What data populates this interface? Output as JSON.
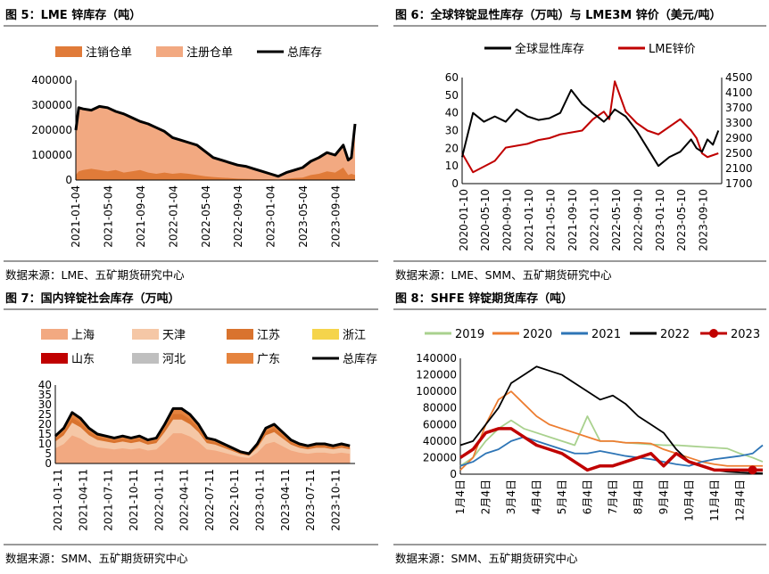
{
  "charts": [
    {
      "title": "图 5：LME 锌库存（吨）",
      "source": "数据来源：LME、五矿期货研究中心",
      "chart_data": {
        "type": "area",
        "legend_position": "top",
        "series": [
          {
            "name": "注销仓单",
            "kind": "area",
            "color": "#e07b39"
          },
          {
            "name": "注册仓单",
            "kind": "area",
            "color": "#f2a981"
          },
          {
            "name": "总库存",
            "kind": "line",
            "color": "#000000"
          }
        ],
        "x_ticks": [
          "2021-01-04",
          "2021-05-04",
          "2021-09-04",
          "2022-01-04",
          "2022-05-04",
          "2022-09-04",
          "2023-01-04",
          "2023-05-04",
          "2023-09-04"
        ],
        "y_ticks": [
          "0",
          "100000",
          "200000",
          "300000",
          "400000"
        ],
        "ylim": [
          0,
          400000
        ],
        "x_dates": [
          "2021-01-04",
          "2021-01-15",
          "2021-02-01",
          "2021-03-01",
          "2021-04-01",
          "2021-05-01",
          "2021-06-01",
          "2021-07-01",
          "2021-08-01",
          "2021-09-01",
          "2021-10-01",
          "2021-11-01",
          "2021-12-01",
          "2022-01-01",
          "2022-02-01",
          "2022-03-01",
          "2022-04-01",
          "2022-05-01",
          "2022-06-01",
          "2022-07-01",
          "2022-08-01",
          "2022-09-01",
          "2022-10-01",
          "2022-11-01",
          "2022-12-01",
          "2023-01-01",
          "2023-02-01",
          "2023-03-01",
          "2023-04-01",
          "2023-05-01",
          "2023-06-01",
          "2023-07-01",
          "2023-08-01",
          "2023-09-01",
          "2023-10-01",
          "2023-10-20",
          "2023-11-01",
          "2023-11-15"
        ],
        "total": [
          200000,
          290000,
          285000,
          280000,
          295000,
          290000,
          275000,
          265000,
          250000,
          235000,
          225000,
          210000,
          195000,
          170000,
          160000,
          150000,
          140000,
          115000,
          90000,
          80000,
          70000,
          60000,
          55000,
          45000,
          35000,
          25000,
          15000,
          30000,
          40000,
          50000,
          75000,
          90000,
          110000,
          100000,
          140000,
          80000,
          90000,
          225000
        ],
        "cancelled": [
          20000,
          35000,
          40000,
          45000,
          40000,
          35000,
          40000,
          30000,
          35000,
          40000,
          30000,
          25000,
          30000,
          25000,
          28000,
          25000,
          20000,
          15000,
          12000,
          10000,
          8000,
          6000,
          5000,
          4000,
          3000,
          3000,
          2000,
          5000,
          8000,
          10000,
          20000,
          25000,
          35000,
          30000,
          50000,
          20000,
          25000,
          20000
        ]
      }
    },
    {
      "title": "图 6：全球锌锭显性库存（万吨）与 LME3M 锌价（美元/吨）",
      "source": "数据来源：LME、SMM、五矿期货研究中心",
      "chart_data": {
        "type": "line",
        "legend_position": "top",
        "series": [
          {
            "name": "全球显性库存",
            "axis": "left",
            "color": "#000000",
            "values": [
              15,
              40,
              35,
              38,
              35,
              42,
              38,
              36,
              37,
              40,
              53,
              45,
              40,
              35,
              38,
              42,
              38,
              30,
              20,
              10,
              15,
              18,
              25,
              20,
              18,
              25,
              22,
              30
            ]
          },
          {
            "name": "LME锌价",
            "axis": "right",
            "color": "#c00000",
            "values": [
              2500,
              2000,
              2150,
              2300,
              2650,
              2700,
              2750,
              2850,
              2900,
              3000,
              3050,
              3100,
              3400,
              3600,
              3400,
              4400,
              3600,
              3300,
              3100,
              3000,
              3200,
              3400,
              3100,
              2900,
              2500,
              2400,
              2450,
              2500
            ]
          }
        ],
        "x_dates": [
          "2020-01",
          "2020-03",
          "2020-05",
          "2020-07",
          "2020-09",
          "2020-11",
          "2021-01",
          "2021-03",
          "2021-05",
          "2021-07",
          "2021-09",
          "2021-11",
          "2022-01",
          "2022-03",
          "2022-04",
          "2022-05",
          "2022-07",
          "2022-09",
          "2022-11",
          "2023-01",
          "2023-03",
          "2023-05",
          "2023-07",
          "2023-08",
          "2023-09",
          "2023-10",
          "2023-11",
          "2023-12"
        ],
        "x_ticks": [
          "2020-01-10",
          "2020-05-10",
          "2020-09-10",
          "2021-01-10",
          "2021-05-10",
          "2021-09-10",
          "2022-01-10",
          "2022-05-10",
          "2022-09-10",
          "2023-01-10",
          "2023-05-10",
          "2023-09-10"
        ],
        "y_left_ticks": [
          "0",
          "10",
          "20",
          "30",
          "40",
          "50",
          "60"
        ],
        "y_right_ticks": [
          "1700",
          "2100",
          "2500",
          "2900",
          "3300",
          "3700",
          "4100",
          "4500"
        ],
        "ylim_left": [
          0,
          60
        ],
        "ylim_right": [
          1700,
          4500
        ]
      }
    },
    {
      "title": "图 7：国内锌锭社会库存（万吨）",
      "source": "数据来源：SMM、五矿期货研究中心",
      "chart_data": {
        "type": "area",
        "legend_position": "top",
        "series": [
          {
            "name": "上海",
            "kind": "area",
            "color": "#f2a981"
          },
          {
            "name": "天津",
            "kind": "area",
            "color": "#f5c7a6"
          },
          {
            "name": "江苏",
            "kind": "area",
            "color": "#d9732e"
          },
          {
            "name": "浙江",
            "kind": "area",
            "color": "#f5d44b"
          },
          {
            "name": "山东",
            "kind": "area",
            "color": "#c00000"
          },
          {
            "name": "河北",
            "kind": "area",
            "color": "#bfbfbf"
          },
          {
            "name": "广东",
            "kind": "area",
            "color": "#e5833e"
          },
          {
            "name": "总库存",
            "kind": "line",
            "color": "#000000"
          }
        ],
        "x_dates": [
          "2021-01",
          "2021-02",
          "2021-03",
          "2021-04",
          "2021-05",
          "2021-06",
          "2021-07",
          "2021-08",
          "2021-09",
          "2021-10",
          "2021-11",
          "2021-12",
          "2022-01",
          "2022-02",
          "2022-03",
          "2022-04",
          "2022-05",
          "2022-06",
          "2022-07",
          "2022-08",
          "2022-09",
          "2022-10",
          "2022-11",
          "2022-12",
          "2023-01",
          "2023-02",
          "2023-03",
          "2023-04",
          "2023-05",
          "2023-06",
          "2023-07",
          "2023-08",
          "2023-09",
          "2023-10",
          "2023-11",
          "2023-12"
        ],
        "total": [
          14,
          18,
          26,
          23,
          18,
          15,
          14,
          13,
          14,
          13,
          14,
          12,
          13,
          20,
          28,
          28,
          25,
          20,
          13,
          12,
          10,
          8,
          6,
          5,
          10,
          18,
          20,
          16,
          12,
          10,
          9,
          10,
          10,
          9,
          10,
          9
        ],
        "x_ticks": [
          "2021-01-11",
          "2021-04-11",
          "2021-07-11",
          "2021-10-11",
          "2022-01-11",
          "2022-04-11",
          "2022-07-11",
          "2022-10-11",
          "2023-01-11",
          "2023-04-11",
          "2023-07-11",
          "2023-10-11"
        ],
        "y_ticks": [
          "0",
          "5",
          "10",
          "15",
          "20",
          "25",
          "30",
          "35",
          "40"
        ],
        "ylim": [
          0,
          40
        ]
      }
    },
    {
      "title": "图 8：SHFE 锌锭期货库存（吨）",
      "source": "数据来源：SMM、五矿期货研究中心",
      "chart_data": {
        "type": "line",
        "legend_position": "top",
        "x_ticks": [
          "1月4日",
          "2月4日",
          "3月4日",
          "4月4日",
          "5月4日",
          "6月4日",
          "7月4日",
          "8月4日",
          "9月4日",
          "10月4日",
          "11月4日",
          "12月4日"
        ],
        "y_ticks": [
          "0",
          "20000",
          "40000",
          "60000",
          "80000",
          "100000",
          "120000",
          "140000"
        ],
        "ylim": [
          0,
          140000
        ],
        "x_months": [
          1,
          1.5,
          2,
          2.5,
          3,
          3.5,
          4,
          4.5,
          5,
          5.5,
          6,
          6.5,
          7,
          7.5,
          8,
          8.5,
          9,
          9.5,
          10,
          10.5,
          11,
          11.5,
          12,
          12.5,
          12.9
        ],
        "series": [
          {
            "name": "2019",
            "color": "#a9d18e",
            "values": [
              10000,
              20000,
              40000,
              55000,
              65000,
              55000,
              50000,
              45000,
              40000,
              35000,
              70000,
              40000,
              40000,
              38000,
              37000,
              36000,
              35000,
              35000,
              34000,
              33000,
              32000,
              31000,
              25000,
              20000,
              15000
            ]
          },
          {
            "name": "2020",
            "color": "#ed7d31",
            "values": [
              5000,
              20000,
              60000,
              90000,
              100000,
              85000,
              70000,
              60000,
              55000,
              50000,
              45000,
              40000,
              40000,
              38000,
              38000,
              37000,
              30000,
              25000,
              20000,
              15000,
              12000,
              10000,
              10000,
              10000,
              10000
            ]
          },
          {
            "name": "2021",
            "color": "#2e75b6",
            "values": [
              10000,
              15000,
              25000,
              30000,
              40000,
              45000,
              40000,
              35000,
              30000,
              25000,
              25000,
              28000,
              25000,
              22000,
              20000,
              18000,
              15000,
              12000,
              10000,
              15000,
              18000,
              20000,
              22000,
              25000,
              35000
            ]
          },
          {
            "name": "2022",
            "color": "#000000",
            "values": [
              35000,
              40000,
              60000,
              80000,
              110000,
              120000,
              130000,
              125000,
              120000,
              110000,
              100000,
              90000,
              95000,
              85000,
              70000,
              60000,
              50000,
              30000,
              15000,
              10000,
              5000,
              3000,
              2000,
              1500,
              1000
            ]
          },
          {
            "name": "2023",
            "color": "#c00000",
            "values": [
              20000,
              30000,
              50000,
              55000,
              55000,
              45000,
              35000,
              30000,
              25000,
              15000,
              5000,
              10000,
              10000,
              15000,
              20000,
              25000,
              10000,
              25000,
              15000,
              10000,
              5000,
              5000,
              5000,
              5000,
              5000
            ]
          }
        ]
      }
    }
  ]
}
